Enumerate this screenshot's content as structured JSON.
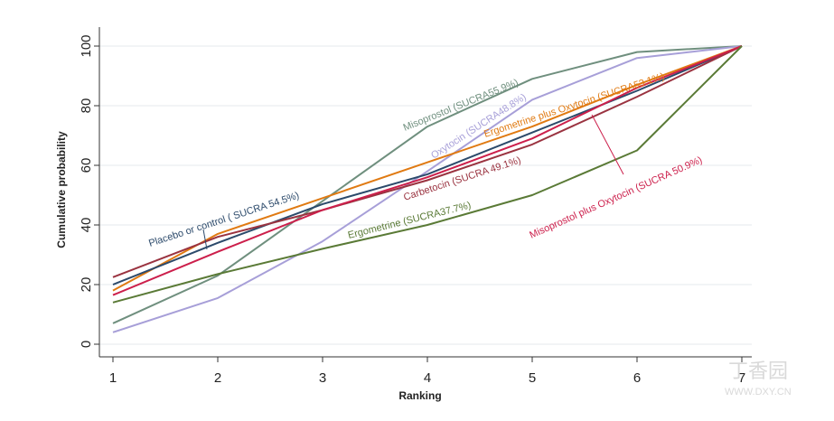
{
  "chart_data": {
    "type": "line",
    "title": "",
    "xlabel": "Ranking",
    "ylabel": "Cumulative probability",
    "x": [
      1,
      2,
      3,
      4,
      5,
      6,
      7
    ],
    "xlim": [
      1,
      7
    ],
    "ylim": [
      0,
      100
    ],
    "yticks": [
      0,
      20,
      40,
      60,
      80,
      100
    ],
    "grid": true,
    "series": [
      {
        "name": "Misoprostol (SUCRA55.9%)",
        "color": "#6f8f7e",
        "values": [
          7,
          23,
          48,
          73,
          89,
          98,
          100
        ]
      },
      {
        "name": "Oxytocin  (SUCRA48.8%)",
        "color": "#a79fd8",
        "values": [
          4,
          15.5,
          34.5,
          58,
          82,
          96,
          100
        ]
      },
      {
        "name": "Ergometrine plus Oxytocin (SUCRA53.1%)",
        "color": "#e07a12",
        "values": [
          18,
          37,
          49,
          61,
          73,
          87,
          100
        ]
      },
      {
        "name": "Placebo or control ( SUCRA 54.5%)",
        "color": "#2c4a6b",
        "values": [
          20,
          34,
          47,
          57,
          71,
          85,
          100
        ]
      },
      {
        "name": "Carbetocin (SUCRA 49.1%)",
        "color": "#9a3340",
        "values": [
          22.5,
          36,
          45,
          55,
          67,
          83,
          100
        ]
      },
      {
        "name": "Misoprostol plus Oxytocin (SUCRA 50.9%)",
        "color": "#cc1f4b",
        "values": [
          16.5,
          31,
          45,
          56,
          69,
          86,
          100
        ]
      },
      {
        "name": "Ergometrine (SUCRA37.7%)",
        "color": "#5a7a36",
        "values": [
          14,
          23.5,
          32,
          40,
          50,
          65,
          100
        ]
      }
    ]
  },
  "watermark": {
    "brand": "丁香园",
    "url": "WWW.DXY.CN"
  }
}
